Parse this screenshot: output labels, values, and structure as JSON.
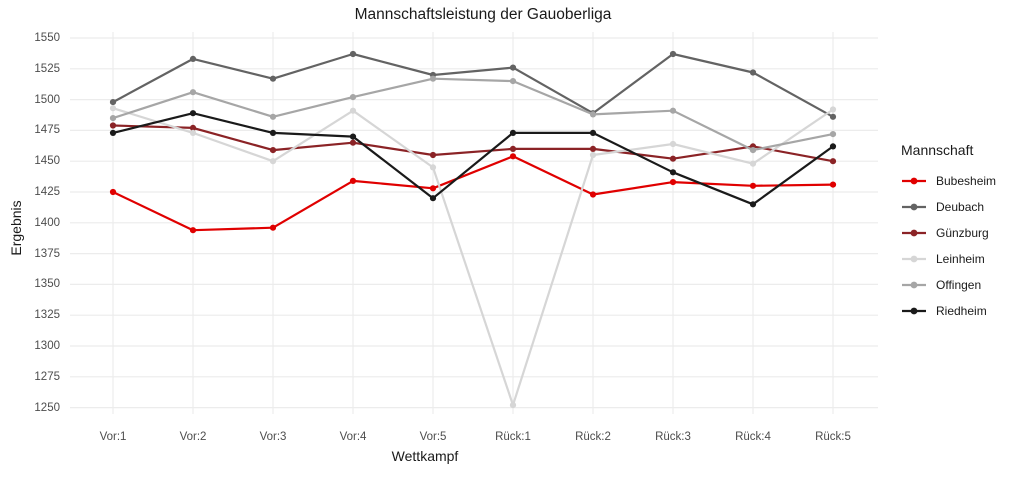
{
  "chart_data": {
    "type": "line",
    "title": "Mannschaftsleistung der Gauoberliga",
    "xlabel": "Wettkampf",
    "ylabel": "Ergebnis",
    "legend_title": "Mannschaft",
    "legend_position": "right",
    "grid": true,
    "categories": [
      "Vor:1",
      "Vor:2",
      "Vor:3",
      "Vor:4",
      "Vor:5",
      "Rück:1",
      "Rück:2",
      "Rück:3",
      "Rück:4",
      "Rück:5"
    ],
    "ylim": [
      1250,
      1550
    ],
    "yticks": [
      1250,
      1275,
      1300,
      1325,
      1350,
      1375,
      1400,
      1425,
      1450,
      1475,
      1500,
      1525,
      1550
    ],
    "series": [
      {
        "name": "Bubesheim",
        "color": "#e00000",
        "values": [
          1425,
          1394,
          1396,
          1434,
          1428,
          1454,
          1423,
          1433,
          1430,
          1431
        ]
      },
      {
        "name": "Deubach",
        "color": "#636363",
        "values": [
          1498,
          1533,
          1517,
          1537,
          1520,
          1526,
          1489,
          1537,
          1522,
          1486
        ]
      },
      {
        "name": "Günzburg",
        "color": "#8b2326",
        "values": [
          1479,
          1477,
          1459,
          1465,
          1455,
          1460,
          1460,
          1452,
          1462,
          1450
        ]
      },
      {
        "name": "Leinheim",
        "color": "#d6d6d6",
        "values": [
          1493,
          1473,
          1450,
          1491,
          1445,
          1252,
          1455,
          1464,
          1448,
          1492
        ]
      },
      {
        "name": "Offingen",
        "color": "#a6a6a6",
        "values": [
          1485,
          1506,
          1486,
          1502,
          1517,
          1515,
          1488,
          1491,
          1459,
          1472
        ]
      },
      {
        "name": "Riedheim",
        "color": "#1a1a1a",
        "values": [
          1473,
          1489,
          1473,
          1470,
          1420,
          1473,
          1473,
          1441,
          1415,
          1462
        ]
      }
    ],
    "style": {
      "grid_color": "#ececec",
      "tick_text_color": "#4d4d4d",
      "text_color": "#1a1a1a",
      "background": "#ffffff"
    }
  }
}
